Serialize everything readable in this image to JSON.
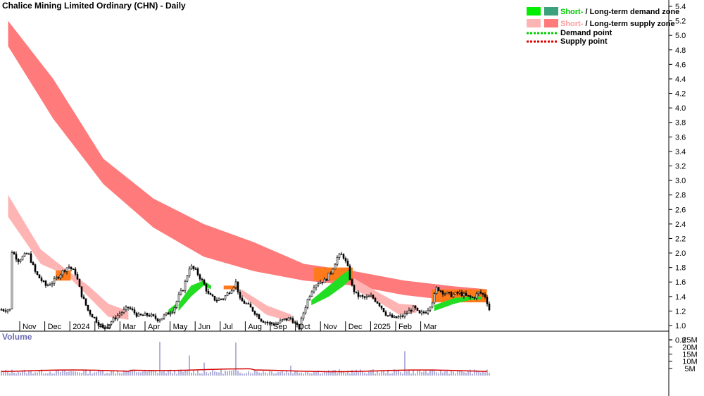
{
  "chart_data": {
    "type": "candlestick",
    "title": "Chalice Mining Limited Ordinary (CHN) - Daily",
    "price_axis": {
      "ticks": [
        "0.8",
        "1.0",
        "1.2",
        "1.4",
        "1.6",
        "1.8",
        "2.0",
        "2.2",
        "2.4",
        "2.6",
        "2.8",
        "3.0",
        "3.2",
        "3.4",
        "3.6",
        "3.8",
        "4.0",
        "4.2",
        "4.4",
        "4.6",
        "4.8",
        "5.0",
        "5.2",
        "5.4"
      ],
      "range": [
        0.78,
        5.5
      ],
      "position": "right"
    },
    "x_axis": {
      "months": [
        "Nov",
        "Dec",
        "2024",
        "Feb",
        "Mar",
        "Apr",
        "May",
        "Jun",
        "Jul",
        "Aug",
        "Sep",
        "Oct",
        "Nov",
        "Dec",
        "2025",
        "Feb",
        "Mar"
      ]
    },
    "volume_panel": {
      "label": "Volume",
      "ticks": [
        "5M",
        "10M",
        "15M",
        "20M",
        "25M"
      ],
      "range": [
        0,
        28
      ],
      "spikes_M": [
        {
          "month_index": 4.2,
          "value": 27.5
        },
        {
          "month_index": 5.25,
          "value": 23.5
        },
        {
          "month_index": 6.45,
          "value": 14
        },
        {
          "month_index": 8.3,
          "value": 23
        },
        {
          "month_index": 15.0,
          "value": 17
        },
        {
          "month_index": 10.5,
          "value": 7
        },
        {
          "month_index": 7.0,
          "value": 9
        }
      ],
      "average_color": "#d40000",
      "bar_color": "#6464b4"
    },
    "price_path": [
      {
        "m": -0.7,
        "p": 2.05
      },
      {
        "m": -0.4,
        "p": 1.9
      },
      {
        "m": 0.0,
        "p": 2.0
      },
      {
        "m": 0.3,
        "p": 1.72
      },
      {
        "m": 0.7,
        "p": 1.55
      },
      {
        "m": 1.0,
        "p": 1.6
      },
      {
        "m": 1.3,
        "p": 1.72
      },
      {
        "m": 1.6,
        "p": 1.82
      },
      {
        "m": 1.9,
        "p": 1.72
      },
      {
        "m": 2.1,
        "p": 1.45
      },
      {
        "m": 2.4,
        "p": 1.2
      },
      {
        "m": 2.7,
        "p": 1.08
      },
      {
        "m": 3.0,
        "p": 0.95
      },
      {
        "m": 3.3,
        "p": 1.05
      },
      {
        "m": 3.6,
        "p": 1.15
      },
      {
        "m": 4.0,
        "p": 1.25
      },
      {
        "m": 4.4,
        "p": 1.13
      },
      {
        "m": 4.8,
        "p": 1.15
      },
      {
        "m": 5.2,
        "p": 1.08
      },
      {
        "m": 5.5,
        "p": 1.15
      },
      {
        "m": 5.8,
        "p": 1.22
      },
      {
        "m": 6.0,
        "p": 1.4
      },
      {
        "m": 6.2,
        "p": 1.52
      },
      {
        "m": 6.45,
        "p": 1.82
      },
      {
        "m": 6.7,
        "p": 1.75
      },
      {
        "m": 7.0,
        "p": 1.58
      },
      {
        "m": 7.2,
        "p": 1.42
      },
      {
        "m": 7.5,
        "p": 1.35
      },
      {
        "m": 7.8,
        "p": 1.38
      },
      {
        "m": 8.1,
        "p": 1.5
      },
      {
        "m": 8.3,
        "p": 1.6
      },
      {
        "m": 8.45,
        "p": 1.35
      },
      {
        "m": 8.7,
        "p": 1.3
      },
      {
        "m": 9.0,
        "p": 1.2
      },
      {
        "m": 9.3,
        "p": 1.08
      },
      {
        "m": 9.6,
        "p": 1.03
      },
      {
        "m": 9.9,
        "p": 1.02
      },
      {
        "m": 10.2,
        "p": 1.08
      },
      {
        "m": 10.5,
        "p": 1.1
      },
      {
        "m": 10.8,
        "p": 0.95
      },
      {
        "m": 11.0,
        "p": 1.2
      },
      {
        "m": 11.2,
        "p": 1.4
      },
      {
        "m": 11.4,
        "p": 1.55
      },
      {
        "m": 11.6,
        "p": 1.6
      },
      {
        "m": 11.85,
        "p": 1.62
      },
      {
        "m": 12.1,
        "p": 1.75
      },
      {
        "m": 12.35,
        "p": 1.95
      },
      {
        "m": 12.55,
        "p": 1.98
      },
      {
        "m": 12.75,
        "p": 1.8
      },
      {
        "m": 12.9,
        "p": 1.55
      },
      {
        "m": 13.1,
        "p": 1.42
      },
      {
        "m": 13.4,
        "p": 1.38
      },
      {
        "m": 13.7,
        "p": 1.4
      },
      {
        "m": 14.0,
        "p": 1.3
      },
      {
        "m": 14.3,
        "p": 1.15
      },
      {
        "m": 14.6,
        "p": 1.1
      },
      {
        "m": 14.9,
        "p": 1.12
      },
      {
        "m": 15.2,
        "p": 1.2
      },
      {
        "m": 15.4,
        "p": 1.25
      },
      {
        "m": 15.6,
        "p": 1.15
      },
      {
        "m": 15.9,
        "p": 1.2
      },
      {
        "m": 16.15,
        "p": 1.35
      },
      {
        "m": 16.3,
        "p": 1.52
      },
      {
        "m": 16.6,
        "p": 1.45
      },
      {
        "m": 16.9,
        "p": 1.42
      },
      {
        "m": 17.2,
        "p": 1.45
      },
      {
        "m": 17.5,
        "p": 1.4
      },
      {
        "m": 17.75,
        "p": 1.38
      },
      {
        "m": 18.0,
        "p": 1.46
      },
      {
        "m": 18.25,
        "p": 1.4
      },
      {
        "m": 18.4,
        "p": 1.22
      }
    ],
    "long_term_supply_zone": {
      "top": [
        {
          "m": -0.8,
          "p": 5.2
        },
        {
          "m": 1.0,
          "p": 4.4
        },
        {
          "m": 3.0,
          "p": 3.3
        },
        {
          "m": 5.0,
          "p": 2.75
        },
        {
          "m": 7.0,
          "p": 2.4
        },
        {
          "m": 9.0,
          "p": 2.15
        },
        {
          "m": 11.0,
          "p": 1.85
        },
        {
          "m": 13.0,
          "p": 1.75
        },
        {
          "m": 15.0,
          "p": 1.62
        },
        {
          "m": 17.0,
          "p": 1.54
        },
        {
          "m": 18.3,
          "p": 1.5
        }
      ],
      "bottom": [
        {
          "m": -0.8,
          "p": 4.85
        },
        {
          "m": 1.0,
          "p": 3.85
        },
        {
          "m": 3.0,
          "p": 2.95
        },
        {
          "m": 5.0,
          "p": 2.35
        },
        {
          "m": 7.0,
          "p": 1.95
        },
        {
          "m": 9.0,
          "p": 1.75
        },
        {
          "m": 11.0,
          "p": 1.62
        },
        {
          "m": 13.0,
          "p": 1.55
        },
        {
          "m": 15.0,
          "p": 1.42
        },
        {
          "m": 17.0,
          "p": 1.34
        },
        {
          "m": 18.3,
          "p": 1.32
        }
      ],
      "color": "#ff7a7a"
    },
    "short_term_supply_zone": {
      "top": [
        {
          "m": -0.8,
          "p": 2.8
        },
        {
          "m": 0.5,
          "p": 2.05
        },
        {
          "m": 1.6,
          "p": 1.75
        },
        {
          "m": 2.4,
          "p": 1.55
        },
        {
          "m": 3.2,
          "p": 1.3
        },
        {
          "m": 4.0,
          "p": 1.2
        },
        {
          "m": 8.5,
          "p": 1.5
        },
        {
          "m": 9.5,
          "p": 1.28
        },
        {
          "m": 10.5,
          "p": 1.15
        },
        {
          "m": 13.0,
          "p": 1.65
        },
        {
          "m": 14.0,
          "p": 1.45
        },
        {
          "m": 14.8,
          "p": 1.3
        },
        {
          "m": 15.5,
          "p": 1.28
        }
      ],
      "bottom": [
        {
          "m": -0.8,
          "p": 2.5
        },
        {
          "m": 0.5,
          "p": 1.85
        },
        {
          "m": 1.6,
          "p": 1.68
        },
        {
          "m": 2.4,
          "p": 1.4
        },
        {
          "m": 3.2,
          "p": 1.12
        },
        {
          "m": 4.0,
          "p": 1.08
        },
        {
          "m": 8.5,
          "p": 1.42
        },
        {
          "m": 9.5,
          "p": 1.15
        },
        {
          "m": 10.5,
          "p": 1.05
        },
        {
          "m": 13.0,
          "p": 1.5
        },
        {
          "m": 14.0,
          "p": 1.32
        },
        {
          "m": 14.8,
          "p": 1.15
        },
        {
          "m": 15.5,
          "p": 1.18
        }
      ],
      "color": "#ffb4b4"
    },
    "demand_zones": [
      {
        "top": [
          {
            "m": 6.0,
            "p": 1.3
          },
          {
            "m": 6.5,
            "p": 1.55
          },
          {
            "m": 7.0,
            "p": 1.62
          },
          {
            "m": 7.3,
            "p": 1.55
          }
        ],
        "bottom": [
          {
            "m": 6.0,
            "p": 1.2
          },
          {
            "m": 6.5,
            "p": 1.4
          },
          {
            "m": 7.0,
            "p": 1.55
          },
          {
            "m": 7.3,
            "p": 1.5
          }
        ]
      },
      {
        "top": [
          {
            "m": 5.6,
            "p": 1.22
          },
          {
            "m": 5.9,
            "p": 1.3
          }
        ],
        "bottom": [
          {
            "m": 5.6,
            "p": 1.15
          },
          {
            "m": 5.9,
            "p": 1.22
          }
        ]
      },
      {
        "top": [
          {
            "m": 11.3,
            "p": 1.35
          },
          {
            "m": 12.0,
            "p": 1.55
          },
          {
            "m": 12.6,
            "p": 1.72
          },
          {
            "m": 12.9,
            "p": 1.78
          }
        ],
        "bottom": [
          {
            "m": 11.3,
            "p": 1.28
          },
          {
            "m": 12.0,
            "p": 1.4
          },
          {
            "m": 12.6,
            "p": 1.55
          },
          {
            "m": 12.9,
            "p": 1.65
          }
        ]
      },
      {
        "top": [
          {
            "m": 16.2,
            "p": 1.28
          },
          {
            "m": 17.0,
            "p": 1.38
          },
          {
            "m": 17.6,
            "p": 1.4
          },
          {
            "m": 18.1,
            "p": 1.4
          }
        ],
        "bottom": [
          {
            "m": 16.2,
            "p": 1.2
          },
          {
            "m": 17.0,
            "p": 1.3
          },
          {
            "m": 17.6,
            "p": 1.35
          },
          {
            "m": 18.1,
            "p": 1.36
          }
        ]
      }
    ],
    "overlap_zones": [
      {
        "m0": 11.4,
        "m1": 12.95,
        "p0": 1.62,
        "p1": 1.8
      },
      {
        "m0": 16.1,
        "m1": 18.3,
        "p0": 1.32,
        "p1": 1.5
      },
      {
        "m0": 1.1,
        "m1": 1.7,
        "p0": 1.62,
        "p1": 1.76
      },
      {
        "m0": 7.8,
        "m1": 8.4,
        "p0": 1.5,
        "p1": 1.55
      }
    ],
    "legend": {
      "position": "top-right",
      "items": [
        {
          "prefix": "Short-",
          "sep": " / ",
          "main": "Long-term demand zone",
          "prefix_color": "#00cc00",
          "main_color": "#00cc00",
          "swatch1": "#00ee00",
          "swatch2": "#3aa17a"
        },
        {
          "prefix": "Short-",
          "sep": " / ",
          "main": "Long-term supply zone",
          "prefix_color": "#ff9c9c",
          "main_color": "#ff4d4d",
          "swatch1": "#ffb4b4",
          "swatch2": "#ff7a7a"
        },
        {
          "main": "Demand point",
          "line_color": "#00cc00"
        },
        {
          "main": "Supply point",
          "line_color": "#e00000"
        }
      ]
    }
  }
}
